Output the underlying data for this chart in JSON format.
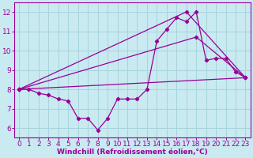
{
  "background_color": "#c8eaf0",
  "grid_color": "#a8d4dc",
  "line_color": "#990099",
  "xlabel": "Windchill (Refroidissement éolien,°C)",
  "ylim": [
    5.5,
    12.5
  ],
  "xlim": [
    -0.5,
    23.5
  ],
  "yticks": [
    6,
    7,
    8,
    9,
    10,
    11,
    12
  ],
  "xticks": [
    0,
    1,
    2,
    3,
    4,
    5,
    6,
    7,
    8,
    9,
    10,
    11,
    12,
    13,
    14,
    15,
    16,
    17,
    18,
    19,
    20,
    21,
    22,
    23
  ],
  "series_detail_x": [
    0,
    1,
    2,
    3,
    4,
    5,
    6,
    7,
    8,
    9,
    10,
    11,
    12,
    13,
    14,
    15,
    16,
    17,
    18,
    19,
    20,
    21,
    22,
    23
  ],
  "series_detail_y": [
    8.0,
    8.0,
    7.8,
    7.7,
    7.5,
    7.4,
    6.5,
    6.5,
    5.9,
    6.5,
    7.5,
    7.5,
    7.5,
    8.0,
    10.5,
    11.1,
    11.7,
    11.5,
    12.0,
    9.5,
    9.6,
    9.6,
    8.9,
    8.6
  ],
  "series_line1_x": [
    0,
    23
  ],
  "series_line1_y": [
    8.0,
    8.6
  ],
  "series_line2_x": [
    0,
    18,
    23
  ],
  "series_line2_y": [
    8.0,
    10.7,
    8.6
  ],
  "series_line3_x": [
    0,
    17,
    23
  ],
  "series_line3_y": [
    8.0,
    12.0,
    8.6
  ],
  "xlabel_fontsize": 6.5,
  "tick_fontsize": 6.5,
  "marker": "D",
  "marker_size": 2.2,
  "linewidth": 0.9
}
